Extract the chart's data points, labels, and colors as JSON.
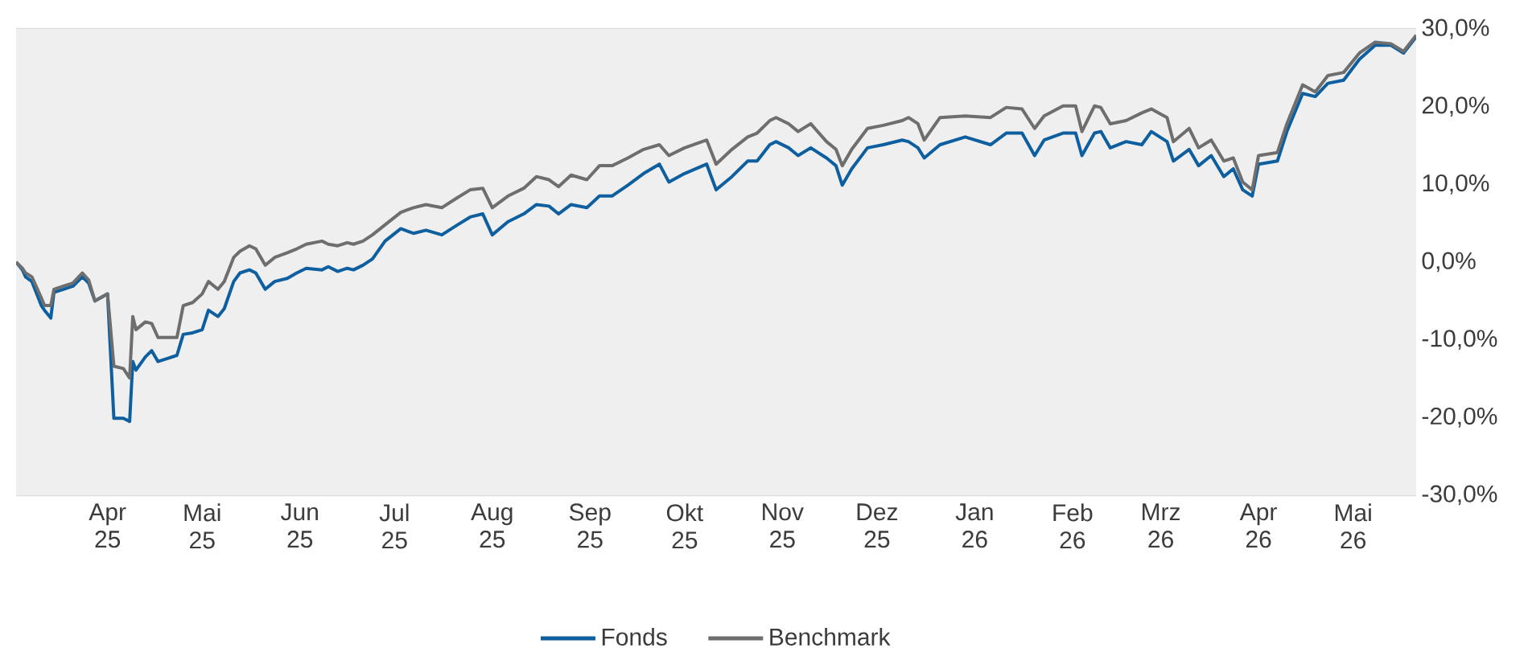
{
  "chart_data": {
    "type": "line",
    "x": [
      "2025-03-03",
      "2025-03-05",
      "2025-03-06",
      "2025-03-08",
      "2025-03-11",
      "2025-03-12",
      "2025-03-14",
      "2025-03-15",
      "2025-03-18",
      "2025-03-21",
      "2025-03-24",
      "2025-03-26",
      "2025-03-28",
      "2025-04-01",
      "2025-04-03",
      "2025-04-06",
      "2025-04-08",
      "2025-04-09",
      "2025-04-10",
      "2025-04-13",
      "2025-04-15",
      "2025-04-17",
      "2025-04-20",
      "2025-04-23",
      "2025-04-25",
      "2025-04-28",
      "2025-05-01",
      "2025-05-03",
      "2025-05-06",
      "2025-05-08",
      "2025-05-11",
      "2025-05-13",
      "2025-05-16",
      "2025-05-18",
      "2025-05-21",
      "2025-05-24",
      "2025-05-28",
      "2025-05-31",
      "2025-06-03",
      "2025-06-08",
      "2025-06-10",
      "2025-06-13",
      "2025-06-16",
      "2025-06-18",
      "2025-06-21",
      "2025-06-24",
      "2025-06-28",
      "2025-07-03",
      "2025-07-07",
      "2025-07-11",
      "2025-07-16",
      "2025-07-21",
      "2025-07-25",
      "2025-07-29",
      "2025-08-01",
      "2025-08-06",
      "2025-08-11",
      "2025-08-15",
      "2025-08-19",
      "2025-08-22",
      "2025-08-26",
      "2025-08-31",
      "2025-09-04",
      "2025-09-08",
      "2025-09-13",
      "2025-09-18",
      "2025-09-23",
      "2025-09-26",
      "2025-10-01",
      "2025-10-08",
      "2025-10-11",
      "2025-10-16",
      "2025-10-21",
      "2025-10-24",
      "2025-10-28",
      "2025-10-30",
      "2025-11-03",
      "2025-11-06",
      "2025-11-10",
      "2025-11-15",
      "2025-11-18",
      "2025-11-20",
      "2025-11-23",
      "2025-11-28",
      "2025-12-03",
      "2025-12-09",
      "2025-12-11",
      "2025-12-14",
      "2025-12-16",
      "2025-12-21",
      "2025-12-29",
      "2026-01-06",
      "2026-01-11",
      "2026-01-16",
      "2026-01-20",
      "2026-01-23",
      "2026-01-29",
      "2026-02-02",
      "2026-02-04",
      "2026-02-08",
      "2026-02-10",
      "2026-02-13",
      "2026-02-18",
      "2026-02-23",
      "2026-02-26",
      "2026-03-03",
      "2026-03-05",
      "2026-03-10",
      "2026-03-13",
      "2026-03-17",
      "2026-03-21",
      "2026-03-24",
      "2026-03-27",
      "2026-03-30",
      "2026-04-01",
      "2026-04-07",
      "2026-04-10",
      "2026-04-15",
      "2026-04-19",
      "2026-04-23",
      "2026-04-28",
      "2026-05-03",
      "2026-05-08",
      "2026-05-13",
      "2026-05-17",
      "2026-05-21"
    ],
    "series": [
      {
        "name": "Fonds",
        "color": "#0d5fa0",
        "values": [
          0,
          -1.0,
          -1.9,
          -2.5,
          -5.6,
          -6.2,
          -7.2,
          -3.9,
          -3.5,
          -3.1,
          -1.9,
          -2.7,
          -5.0,
          -4.1,
          -20.1,
          -20.1,
          -20.5,
          -12.8,
          -13.9,
          -12.2,
          -11.4,
          -12.8,
          -12.4,
          -12.0,
          -9.3,
          -9.1,
          -8.7,
          -6.2,
          -7.0,
          -6.0,
          -2.5,
          -1.4,
          -1.0,
          -1.4,
          -3.5,
          -2.5,
          -2.1,
          -1.4,
          -0.8,
          -1.0,
          -0.6,
          -1.2,
          -0.8,
          -1.0,
          -0.4,
          0.4,
          2.7,
          4.3,
          3.7,
          4.1,
          3.5,
          4.8,
          5.8,
          6.2,
          3.5,
          5.2,
          6.2,
          7.4,
          7.2,
          6.2,
          7.4,
          7.0,
          8.5,
          8.5,
          9.9,
          11.4,
          12.6,
          10.3,
          11.4,
          12.6,
          9.3,
          11.0,
          13.0,
          13.0,
          15.1,
          15.5,
          14.7,
          13.7,
          14.7,
          13.4,
          12.4,
          9.9,
          12.0,
          14.7,
          15.1,
          15.7,
          15.5,
          14.7,
          13.4,
          15.1,
          16.1,
          15.1,
          16.6,
          16.6,
          13.7,
          15.7,
          16.6,
          16.6,
          13.7,
          16.6,
          16.8,
          14.7,
          15.5,
          15.1,
          16.8,
          15.5,
          13.0,
          14.5,
          12.4,
          13.7,
          11.0,
          12.0,
          9.3,
          8.5,
          12.6,
          13.0,
          16.8,
          21.7,
          21.3,
          23.0,
          23.4,
          26.1,
          27.9,
          27.9,
          26.9,
          29.0
        ]
      },
      {
        "name": "Benchmark",
        "color": "#6e6e6e",
        "values": [
          0,
          -0.8,
          -1.4,
          -1.9,
          -4.6,
          -5.6,
          -5.6,
          -3.5,
          -3.1,
          -2.7,
          -1.4,
          -2.3,
          -5.0,
          -4.1,
          -13.4,
          -13.7,
          -14.9,
          -7.0,
          -8.7,
          -7.7,
          -7.9,
          -9.7,
          -9.7,
          -9.7,
          -5.6,
          -5.2,
          -4.1,
          -2.5,
          -3.5,
          -2.5,
          0.6,
          1.4,
          2.1,
          1.7,
          -0.4,
          0.6,
          1.2,
          1.7,
          2.3,
          2.7,
          2.3,
          2.1,
          2.5,
          2.3,
          2.7,
          3.5,
          4.8,
          6.4,
          7.0,
          7.4,
          7.0,
          8.3,
          9.3,
          9.5,
          7.0,
          8.5,
          9.5,
          11.0,
          10.6,
          9.7,
          11.2,
          10.6,
          12.4,
          12.4,
          13.4,
          14.5,
          15.1,
          13.7,
          14.7,
          15.7,
          12.6,
          14.5,
          16.1,
          16.6,
          18.2,
          18.6,
          17.8,
          16.8,
          17.8,
          15.5,
          14.5,
          12.4,
          14.5,
          17.2,
          17.6,
          18.2,
          18.6,
          17.8,
          15.7,
          18.6,
          18.8,
          18.6,
          19.9,
          19.7,
          17.2,
          18.8,
          20.1,
          20.1,
          16.8,
          20.1,
          19.9,
          17.8,
          18.2,
          19.2,
          19.7,
          18.6,
          15.5,
          17.2,
          14.7,
          15.7,
          13.0,
          13.4,
          10.3,
          9.3,
          13.7,
          14.1,
          17.8,
          22.8,
          21.9,
          24.0,
          24.4,
          26.9,
          28.3,
          28.1,
          27.1,
          29.2
        ]
      }
    ],
    "xlim": [
      "2025-03-03",
      "2026-05-21"
    ],
    "xticks": [
      {
        "value": "2025-04-01",
        "label": "Apr 25"
      },
      {
        "value": "2025-05-01",
        "label": "Mai 25"
      },
      {
        "value": "2025-06-01",
        "label": "Jun 25"
      },
      {
        "value": "2025-07-01",
        "label": "Jul 25"
      },
      {
        "value": "2025-08-01",
        "label": "Aug 25"
      },
      {
        "value": "2025-09-01",
        "label": "Sep 25"
      },
      {
        "value": "2025-10-01",
        "label": "Okt 25"
      },
      {
        "value": "2025-11-01",
        "label": "Nov 25"
      },
      {
        "value": "2025-12-01",
        "label": "Dez 25"
      },
      {
        "value": "2026-01-01",
        "label": "Jan 26"
      },
      {
        "value": "2026-02-01",
        "label": "Feb 26"
      },
      {
        "value": "2026-03-01",
        "label": "Mrz 26"
      },
      {
        "value": "2026-04-01",
        "label": "Apr 26"
      },
      {
        "value": "2026-05-01",
        "label": "Mai 26"
      }
    ],
    "ylim": [
      -30,
      30
    ],
    "yticks": [
      {
        "value": 30,
        "label": "30,0%"
      },
      {
        "value": 20,
        "label": "20,0%"
      },
      {
        "value": 10,
        "label": "10,0%"
      },
      {
        "value": 0,
        "label": "0,0%"
      },
      {
        "value": -10,
        "label": "-10,0%"
      },
      {
        "value": -20,
        "label": "-20,0%"
      },
      {
        "value": -30,
        "label": "-30,0%"
      }
    ],
    "grid": "y",
    "legend": "bottom",
    "marker": "none",
    "line_style": "solid"
  }
}
